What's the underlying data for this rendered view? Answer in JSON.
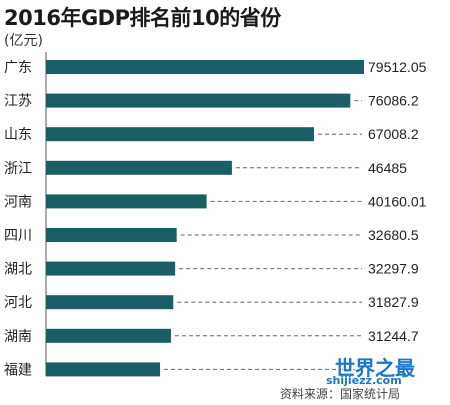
{
  "chart_data": {
    "type": "bar",
    "orientation": "horizontal",
    "title": "2016年GDP排名前10的省份",
    "unit": "(亿元)",
    "categories": [
      "广东",
      "江苏",
      "山东",
      "浙江",
      "河南",
      "四川",
      "湖北",
      "河北",
      "湖南",
      "福建"
    ],
    "values": [
      79512.05,
      76086.2,
      67008.2,
      46485,
      40160.01,
      32680.5,
      32297.9,
      31827.9,
      31244.7,
      28519.15
    ],
    "value_labels": [
      "79512.05",
      "76086.2",
      "67008.2",
      "46485",
      "40160.01",
      "32680.5",
      "32297.9",
      "31827.9",
      "31244.7",
      ""
    ],
    "bar_color": "#1b5f66",
    "xlim": [
      0,
      82000
    ]
  },
  "watermark": {
    "name": "世界之最",
    "url": "shijiezz.com"
  },
  "source": "资料来源：国家统计局"
}
